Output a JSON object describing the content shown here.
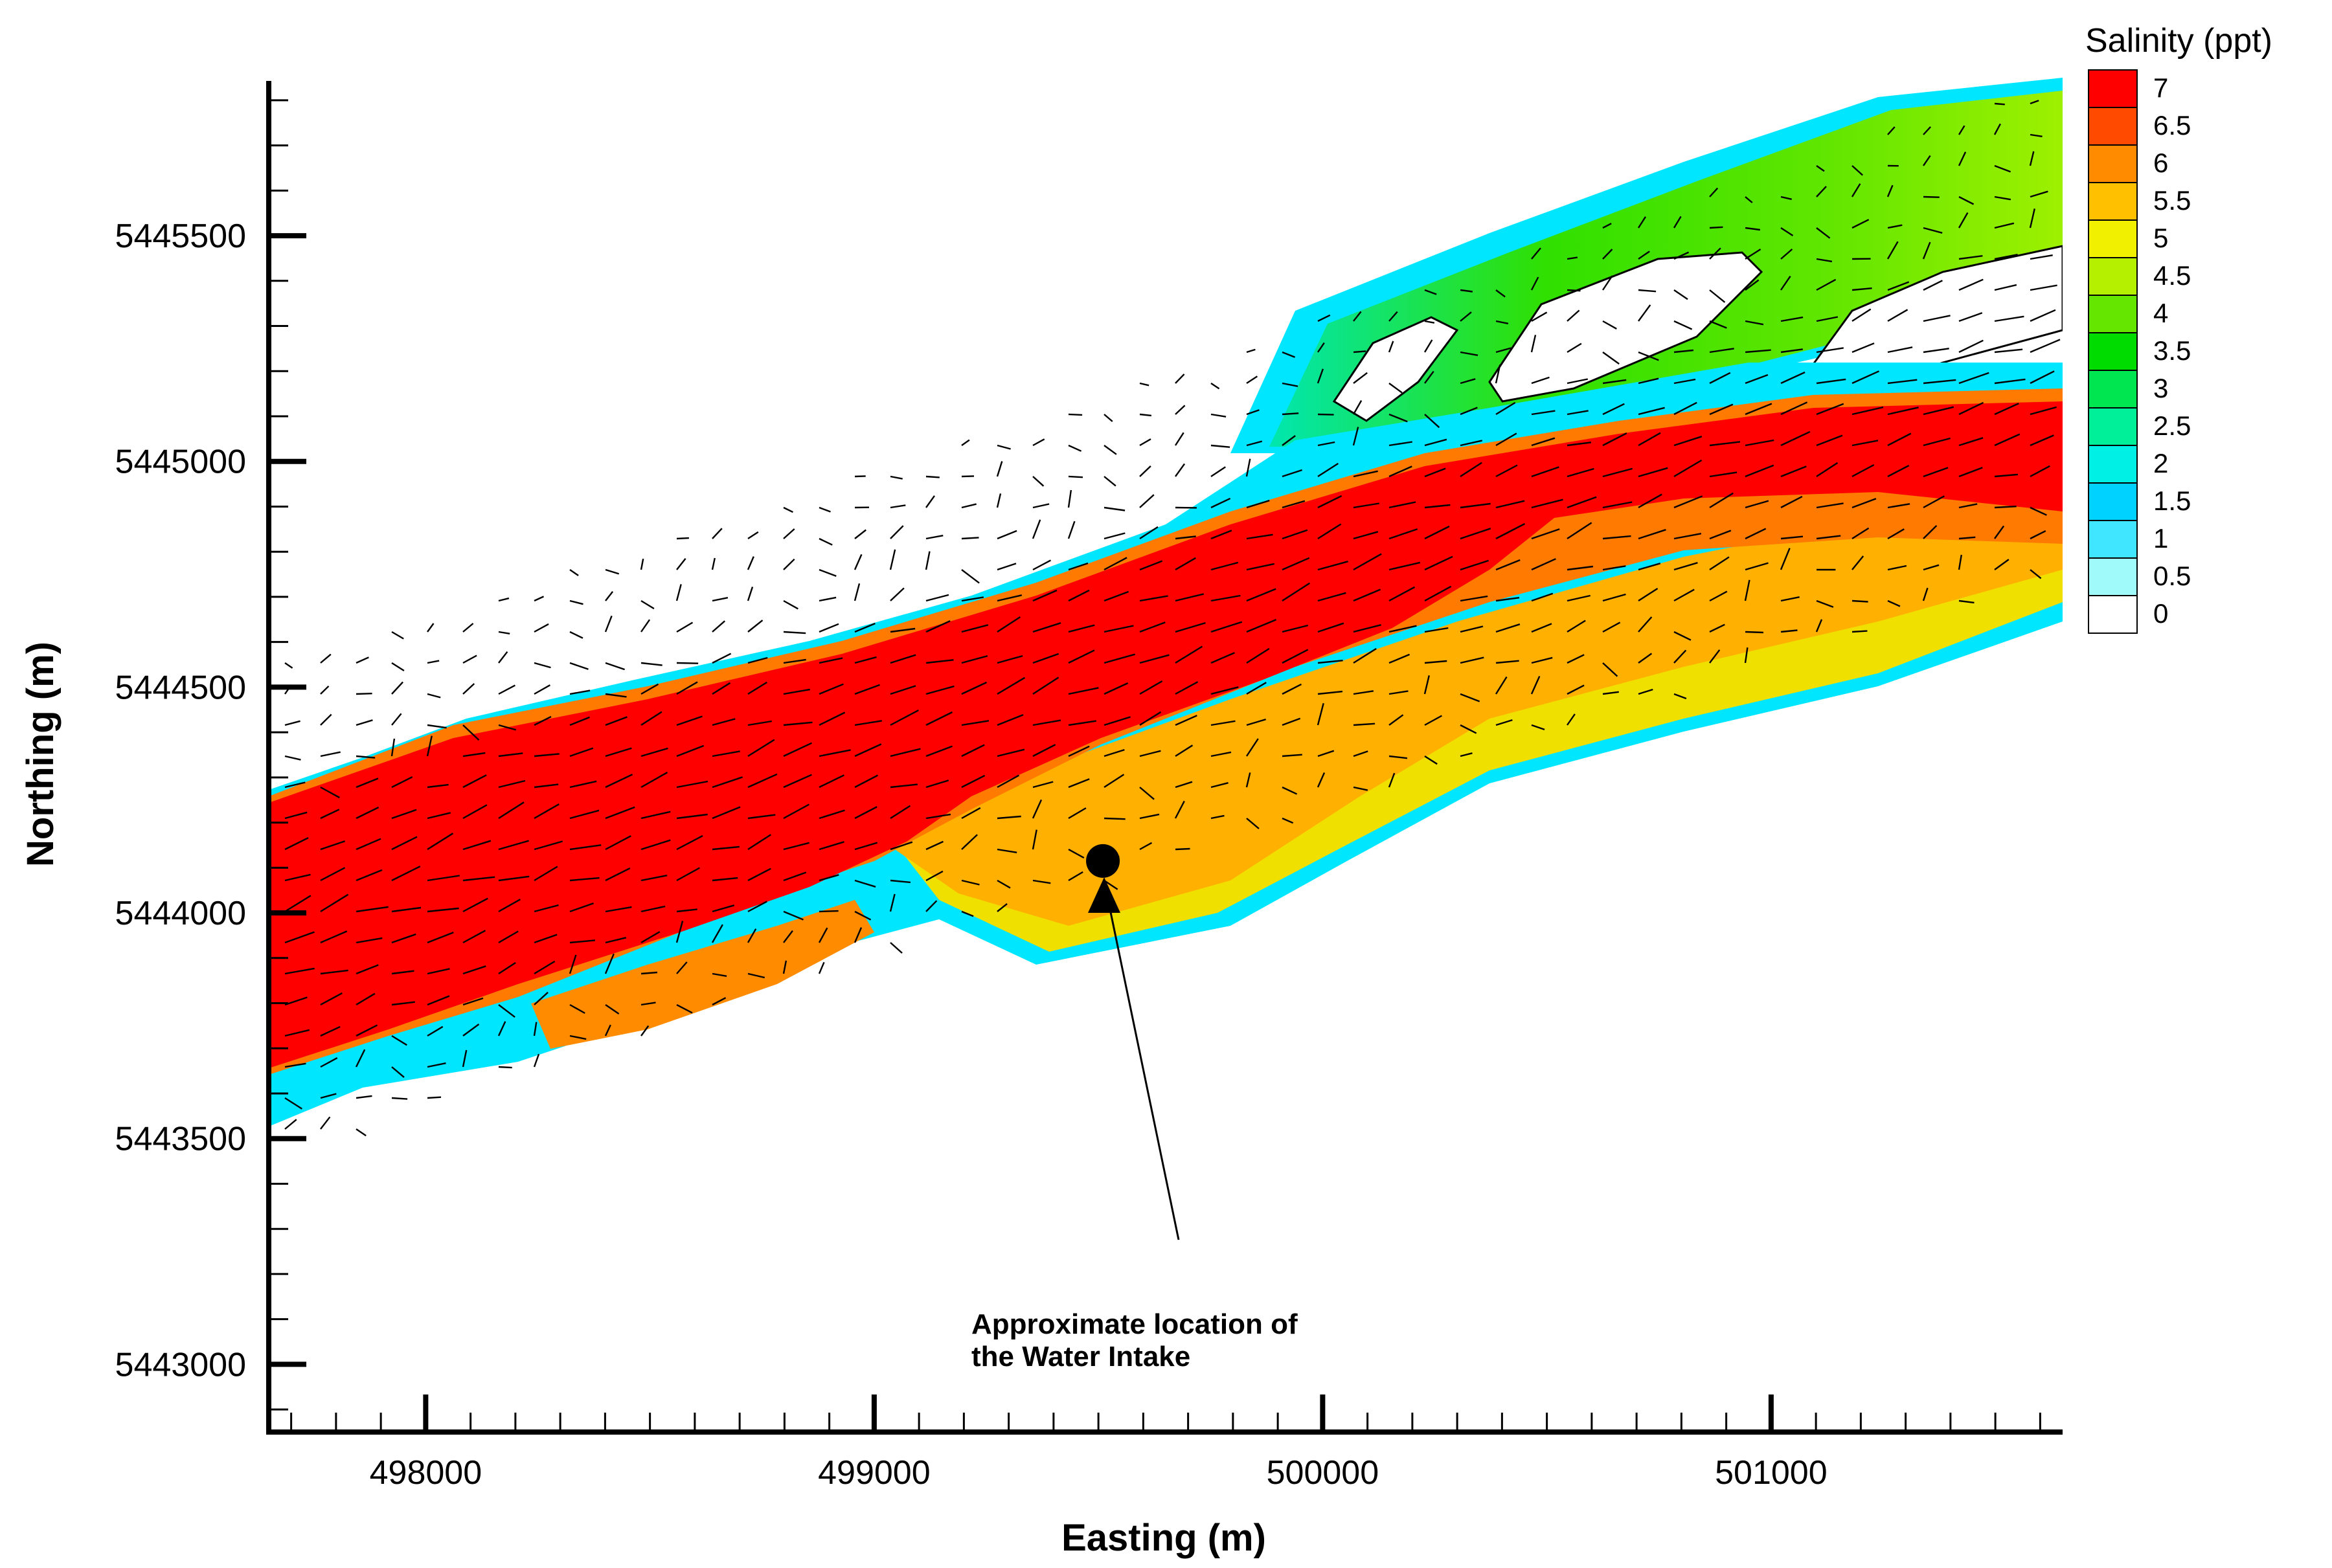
{
  "chart_data": {
    "type": "heatmap",
    "xlabel": "Easting (m)",
    "ylabel": "Northing (m)",
    "xlim": [
      497650,
      501650
    ],
    "ylim": [
      5442850,
      5445850
    ],
    "x_ticks": [
      {
        "value": 498000,
        "label": "498000"
      },
      {
        "value": 499000,
        "label": "499000"
      },
      {
        "value": 500000,
        "label": "500000"
      },
      {
        "value": 501000,
        "label": "501000"
      }
    ],
    "y_ticks": [
      {
        "value": 5443000,
        "label": "5443000"
      },
      {
        "value": 5443500,
        "label": "5443500"
      },
      {
        "value": 5444000,
        "label": "5444000"
      },
      {
        "value": 5444500,
        "label": "5444500"
      },
      {
        "value": 5445000,
        "label": "5445000"
      },
      {
        "value": 5445500,
        "label": "5445500"
      }
    ],
    "colorbar": {
      "title": "Salinity (ppt)",
      "levels": [
        {
          "label": "7",
          "value": 7,
          "color": "#ff0000"
        },
        {
          "label": "6.5",
          "value": 6.5,
          "color": "#ff4a00"
        },
        {
          "label": "6",
          "value": 6,
          "color": "#ff8c00"
        },
        {
          "label": "5.5",
          "value": 5.5,
          "color": "#ffc000"
        },
        {
          "label": "5",
          "value": 5,
          "color": "#f0f000"
        },
        {
          "label": "4.5",
          "value": 4.5,
          "color": "#b4f000"
        },
        {
          "label": "4",
          "value": 4,
          "color": "#64e600"
        },
        {
          "label": "3.5",
          "value": 3.5,
          "color": "#00dc00"
        },
        {
          "label": "3",
          "value": 3,
          "color": "#00e650"
        },
        {
          "label": "2.5",
          "value": 2.5,
          "color": "#00f09a"
        },
        {
          "label": "2",
          "value": 2,
          "color": "#00f0e6"
        },
        {
          "label": "1.5",
          "value": 1.5,
          "color": "#00d2ff"
        },
        {
          "label": "1",
          "value": 1,
          "color": "#40e6ff"
        },
        {
          "label": "0.5",
          "value": 0.5,
          "color": "#a0fafa"
        },
        {
          "label": "0",
          "value": 0,
          "color": "#ffffff"
        }
      ]
    },
    "annotation": {
      "lines": [
        "Approximate location of",
        "the Water Intake"
      ],
      "marker": {
        "x": 499510,
        "y": 5444115
      }
    },
    "colors": {
      "high": "#ff0000",
      "channel_edge": "#ff6a00",
      "south_shoal": "#ffb000",
      "north_channel": "#50e000",
      "shore": "#00e6ff"
    }
  }
}
